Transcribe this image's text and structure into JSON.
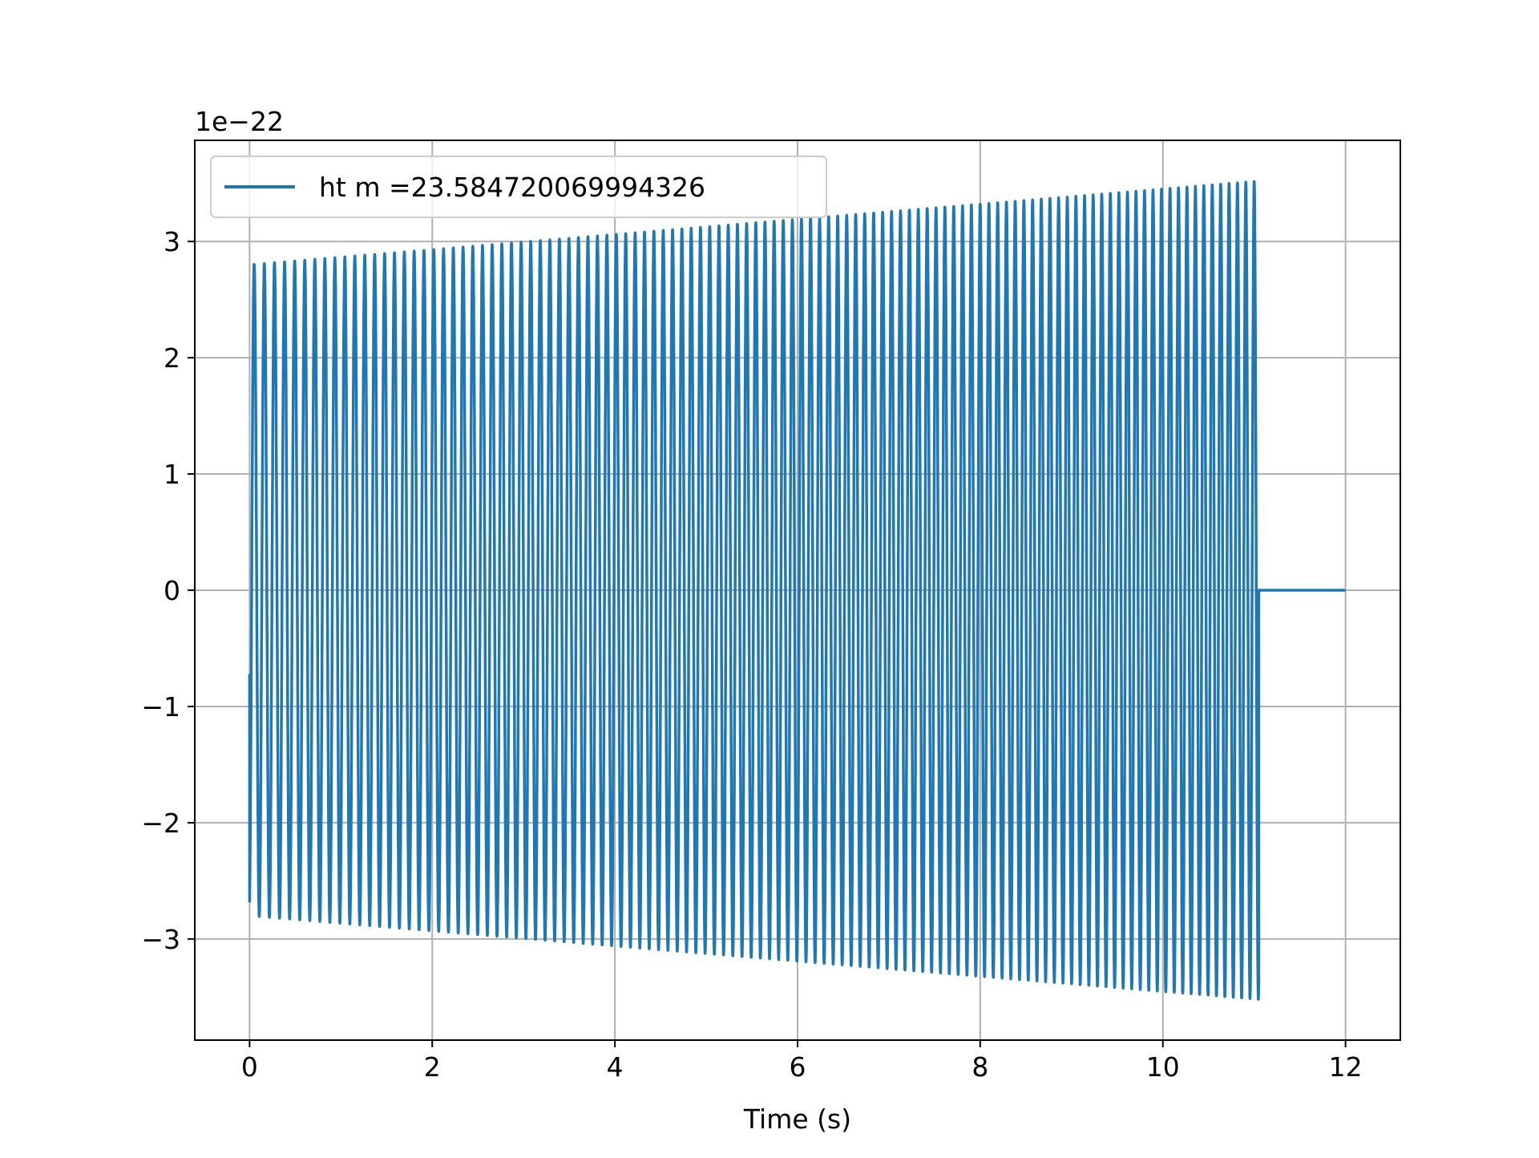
{
  "chart_data": {
    "type": "line",
    "title": "",
    "xlabel": "Time (s)",
    "ylabel": "",
    "offset_text": "1e−22",
    "xlim": [
      -0.6,
      12.6
    ],
    "ylim": [
      -3.87,
      3.87
    ],
    "scale_factor": 1e-22,
    "grid": true,
    "legend_location": "upper left",
    "x_ticks": [
      0,
      2,
      4,
      6,
      8,
      10,
      12
    ],
    "x_tick_labels": [
      "0",
      "2",
      "4",
      "6",
      "8",
      "10",
      "12"
    ],
    "y_ticks": [
      -3,
      -2,
      -1,
      0,
      1,
      2,
      3
    ],
    "y_tick_labels": [
      "−3",
      "−2",
      "−1",
      "0",
      "1",
      "2",
      "3"
    ],
    "series": [
      {
        "name": "ht m =23.584720069994326",
        "color": "#1f77b4",
        "signal": "chirp",
        "chirp_start_time": 0.0,
        "chirp_end_time": 11.05,
        "post_chirp_end_time": 12.0,
        "initial_value": -0.72,
        "cycles": 110,
        "amplitude_start": 2.8,
        "amplitude_end": 3.52,
        "post_chirp_value": 0.0
      }
    ]
  }
}
